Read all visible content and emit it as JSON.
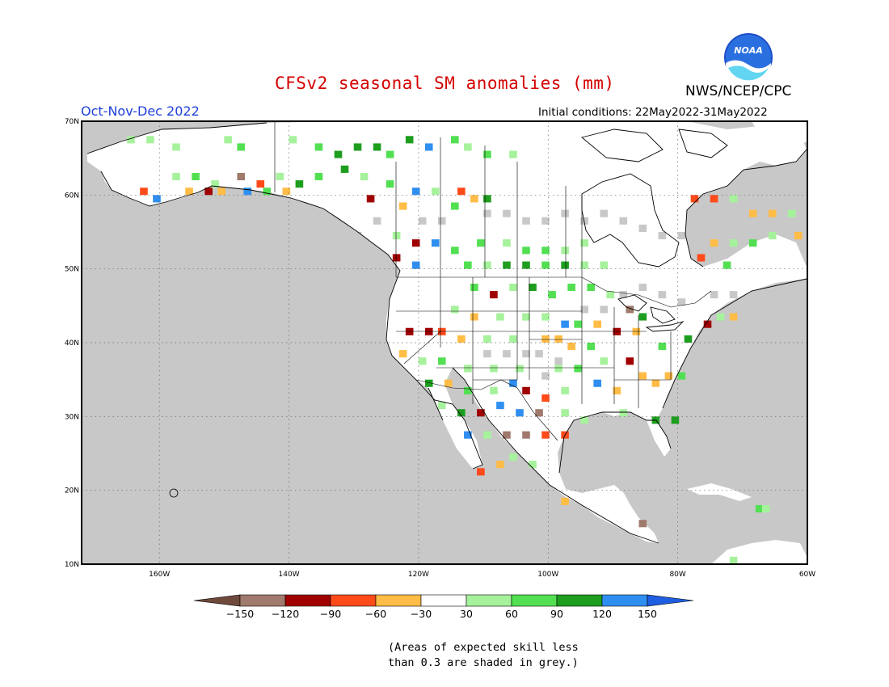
{
  "header": {
    "title": "CFSv2 seasonal SM anomalies (mm)",
    "agency": "NWS/NCEP/CPC",
    "season": "Oct-Nov-Dec 2022",
    "initial_conditions": "Initial conditions: 22May2022-31May2022",
    "logo_text": "NOAA"
  },
  "map": {
    "projection": "latitude-longitude",
    "lon_range": [
      -172,
      -60
    ],
    "lat_range": [
      10,
      70
    ],
    "lat_labels": [
      "70N",
      "60N",
      "50N",
      "40N",
      "30N",
      "20N",
      "10N"
    ],
    "lon_labels": [
      "160W",
      "140W",
      "120W",
      "100W",
      "80W",
      "60W"
    ],
    "grid": "dotted",
    "background_color": "#c8c8c8",
    "land_color": "#ffffff"
  },
  "colorbar": {
    "colors": [
      "#6e4a3c",
      "#a07a6c",
      "#a00000",
      "#ff4a1a",
      "#ffbc46",
      "#ffffff",
      "#a6f29c",
      "#52e052",
      "#1e9e1e",
      "#2f8ff0",
      "#1f5ee0"
    ],
    "labels": [
      "−150",
      "−120",
      "−90",
      "−60",
      "−30",
      "30",
      "60",
      "90",
      "120",
      "150"
    ]
  },
  "note": {
    "line1": "(Areas of expected skill less",
    "line2": "than 0.3 are shaded in grey.)"
  }
}
